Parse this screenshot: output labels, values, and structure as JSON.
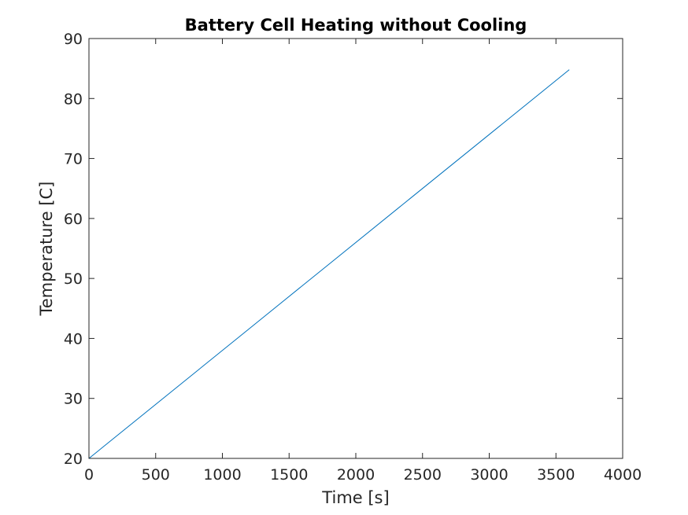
{
  "chart_data": {
    "type": "line",
    "title": "Battery Cell Heating without Cooling",
    "xlabel": "Time [s]",
    "ylabel": "Temperature [C]",
    "xlim": [
      0,
      4000
    ],
    "ylim": [
      20,
      90
    ],
    "xticks": [
      "0",
      "500",
      "1000",
      "1500",
      "2000",
      "2500",
      "3000",
      "3500",
      "4000"
    ],
    "yticks": [
      "20",
      "30",
      "40",
      "50",
      "60",
      "70",
      "80",
      "90"
    ],
    "grid": false,
    "line_color": "#0072BD",
    "series": [
      {
        "x": [
          0,
          600,
          1200,
          1800,
          2400,
          3000,
          3600
        ],
        "y": [
          20,
          30.8,
          41.6,
          52.4,
          63.2,
          74.0,
          84.8
        ]
      }
    ]
  }
}
